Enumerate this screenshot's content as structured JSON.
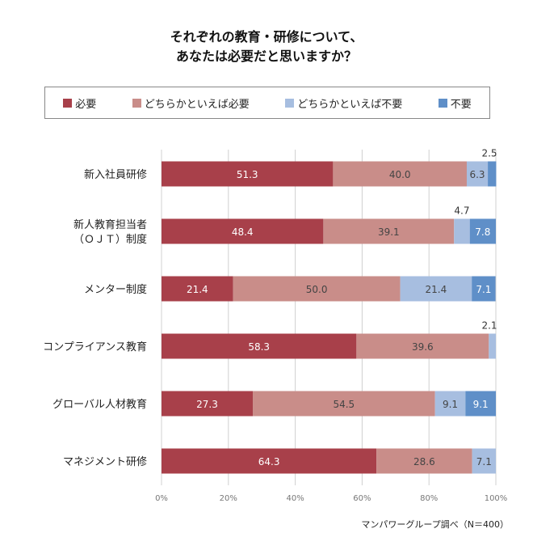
{
  "chart_data": {
    "type": "bar",
    "orientation": "horizontal",
    "stacked": true,
    "title": [
      "それぞれの教育・研修について、",
      "あなたは必要だと思いますか？"
    ],
    "categories": [
      "新入社員研修",
      "新人教育担当者\n（ＯＪＴ）制度",
      "メンター制度",
      "コンプライアンス教育",
      "グローバル人材教育",
      "マネジメント研修"
    ],
    "series": [
      {
        "name": "必要",
        "color": "#a8404a",
        "values": [
          51.3,
          48.4,
          21.4,
          58.3,
          27.3,
          64.3
        ]
      },
      {
        "name": "どちらかといえば必要",
        "color": "#c98d89",
        "values": [
          40.0,
          39.1,
          50.0,
          39.6,
          54.5,
          28.6
        ]
      },
      {
        "name": "どちらかといえば不要",
        "color": "#a7bee0",
        "values": [
          6.3,
          4.7,
          21.4,
          2.1,
          9.1,
          7.1
        ]
      },
      {
        "name": "不要",
        "color": "#5f8fc8",
        "values": [
          2.5,
          7.8,
          7.1,
          null,
          9.1,
          null
        ]
      }
    ],
    "xlim": [
      0,
      100
    ],
    "xticks": [
      "0%",
      "20%",
      "40%",
      "60%",
      "80%",
      "100%"
    ],
    "grid": true,
    "legend": "top"
  },
  "footnote": "マンパワーグループ調べ（N＝400）"
}
